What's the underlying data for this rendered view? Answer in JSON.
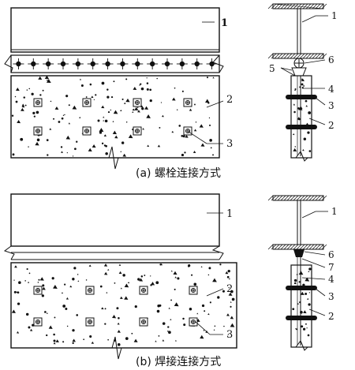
{
  "panel_a": {
    "caption": "(a) 螺栓连接方式",
    "elevation_labels": {
      "n1": "1",
      "n2": "2",
      "n3": "3"
    },
    "section_labels": {
      "n1": "1",
      "n6": "6",
      "n5": "5",
      "n4": "4",
      "n3": "3",
      "n2": "2"
    }
  },
  "panel_b": {
    "caption": "(b) 焊接连接方式",
    "elevation_labels": {
      "n1": "1",
      "n2": "2",
      "n3": "3"
    },
    "section_labels": {
      "n1": "1",
      "n6": "6",
      "n7": "7",
      "n4": "4",
      "n3": "3",
      "n2": "2"
    }
  }
}
